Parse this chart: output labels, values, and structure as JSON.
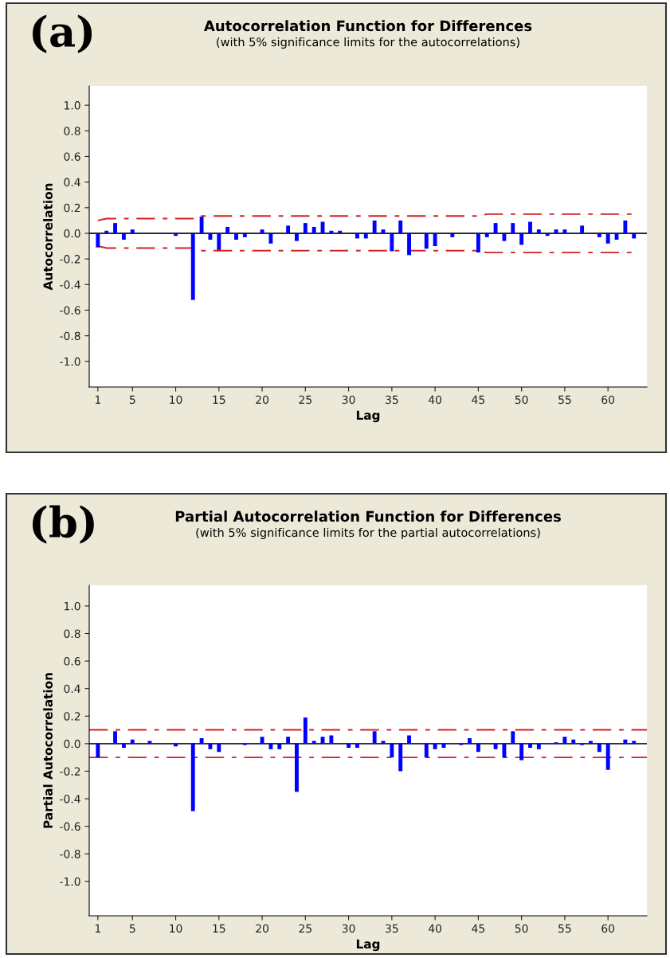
{
  "chart_data": [
    {
      "type": "bar",
      "title": "Autocorrelation Function for Differences",
      "subtitle": "(with 5% significance limits for the autocorrelations)",
      "xlabel": "Lag",
      "ylabel": "Autocorrelation",
      "annotations": [
        "(a)"
      ],
      "xlim": [
        0,
        64.5
      ],
      "xticks": [
        1,
        5,
        10,
        15,
        20,
        25,
        30,
        35,
        40,
        45,
        50,
        55,
        60
      ],
      "ylim": [
        -1.2,
        1.15
      ],
      "yticks": [
        {
          "value": 1,
          "label": "1.0"
        },
        {
          "value": 0.8,
          "label": "0.8"
        },
        {
          "value": 0.6,
          "label": "0.6"
        },
        {
          "value": 0.4,
          "label": "0.4"
        },
        {
          "value": 0.2,
          "label": "0.2"
        },
        {
          "value": 0,
          "label": "0.0"
        },
        {
          "value": -0.2,
          "label": "-0.2"
        },
        {
          "value": -0.4,
          "label": "-0.4"
        },
        {
          "value": -0.6,
          "label": "-0.6"
        },
        {
          "value": -0.8,
          "label": "-0.8"
        },
        {
          "value": -1,
          "label": "-1.0"
        }
      ],
      "grid": false,
      "legend": false,
      "ref_lines": [
        {
          "axis": "y",
          "value": 0,
          "color": "#2a2a3a",
          "line_style": "solid"
        }
      ],
      "series": [
        {
          "color": "#0000ff",
          "x": [
            1,
            2,
            3,
            4,
            5,
            6,
            7,
            8,
            9,
            10,
            11,
            12,
            13,
            14,
            15,
            16,
            17,
            18,
            19,
            20,
            21,
            22,
            23,
            24,
            25,
            26,
            27,
            28,
            29,
            30,
            31,
            32,
            33,
            34,
            35,
            36,
            37,
            38,
            39,
            40,
            41,
            42,
            43,
            44,
            45,
            46,
            47,
            48,
            49,
            50,
            51,
            52,
            53,
            54,
            55,
            56,
            57,
            58,
            59,
            60,
            61,
            62,
            63
          ],
          "values": [
            -0.11,
            0.02,
            0.08,
            -0.05,
            0.03,
            0,
            0,
            0,
            0,
            -0.02,
            0,
            -0.52,
            0.13,
            -0.05,
            -0.13,
            0.05,
            -0.05,
            -0.03,
            0,
            0.03,
            -0.08,
            0,
            0.06,
            -0.06,
            0.08,
            0.05,
            0.09,
            0.02,
            0.02,
            0,
            -0.04,
            -0.04,
            0.1,
            0.03,
            -0.14,
            0.1,
            -0.17,
            0,
            -0.12,
            -0.1,
            0,
            -0.03,
            0,
            0,
            -0.15,
            -0.03,
            0.08,
            -0.06,
            0.08,
            -0.09,
            0.09,
            0.03,
            -0.02,
            0.03,
            0.03,
            0,
            0.06,
            0,
            -0.03,
            -0.08,
            -0.05,
            0.1,
            -0.04
          ]
        },
        {
          "type": "line",
          "color": "#d42020",
          "line_style": "dashdot",
          "x": [
            1,
            2,
            12,
            13,
            45,
            46,
            63
          ],
          "values": [
            0.1,
            0.115,
            0.115,
            0.135,
            0.135,
            0.15,
            0.15
          ]
        },
        {
          "type": "line",
          "color": "#d42020",
          "line_style": "dashdot",
          "x": [
            1,
            2,
            12,
            13,
            45,
            46,
            63
          ],
          "values": [
            -0.1,
            -0.115,
            -0.115,
            -0.135,
            -0.135,
            -0.15,
            -0.15
          ]
        }
      ]
    },
    {
      "type": "bar",
      "title": "Partial Autocorrelation Function for Differences",
      "subtitle": "(with 5% significance limits for the partial autocorrelations)",
      "xlabel": "Lag",
      "ylabel": "Partial Autocorrelation",
      "annotations": [
        "(b)"
      ],
      "xlim": [
        0,
        64.5
      ],
      "xticks": [
        1,
        5,
        10,
        15,
        20,
        25,
        30,
        35,
        40,
        45,
        50,
        55,
        60
      ],
      "ylim": [
        -1.25,
        1.15
      ],
      "yticks": [
        {
          "value": 1,
          "label": "1.0"
        },
        {
          "value": 0.8,
          "label": "0.8"
        },
        {
          "value": 0.6,
          "label": "0.6"
        },
        {
          "value": 0.4,
          "label": "0.4"
        },
        {
          "value": 0.2,
          "label": "0.2"
        },
        {
          "value": 0,
          "label": "0.0"
        },
        {
          "value": -0.2,
          "label": "-0.2"
        },
        {
          "value": -0.4,
          "label": "-0.4"
        },
        {
          "value": -0.6,
          "label": "-0.6"
        },
        {
          "value": -0.8,
          "label": "-0.8"
        },
        {
          "value": -1,
          "label": "-1.0"
        }
      ],
      "grid": false,
      "legend": false,
      "ref_lines": [
        {
          "axis": "y",
          "value": 0,
          "color": "#2a2a3a",
          "line_style": "solid"
        },
        {
          "axis": "y",
          "value": 0.1,
          "color": "#d42020",
          "line_style": "dashdot"
        },
        {
          "axis": "y",
          "value": -0.1,
          "color": "#d42020",
          "line_style": "dashdot"
        }
      ],
      "series": [
        {
          "color": "#0000ff",
          "x": [
            1,
            2,
            3,
            4,
            5,
            6,
            7,
            8,
            9,
            10,
            11,
            12,
            13,
            14,
            15,
            16,
            17,
            18,
            19,
            20,
            21,
            22,
            23,
            24,
            25,
            26,
            27,
            28,
            29,
            30,
            31,
            32,
            33,
            34,
            35,
            36,
            37,
            38,
            39,
            40,
            41,
            42,
            43,
            44,
            45,
            46,
            47,
            48,
            49,
            50,
            51,
            52,
            53,
            54,
            55,
            56,
            57,
            58,
            59,
            60,
            61,
            62,
            63
          ],
          "values": [
            -0.1,
            0,
            0.09,
            -0.03,
            0.03,
            0,
            0.02,
            0,
            0,
            -0.02,
            0,
            -0.49,
            0.04,
            -0.04,
            -0.06,
            0,
            0,
            -0.01,
            0,
            0.05,
            -0.04,
            -0.04,
            0.05,
            -0.35,
            0.19,
            0.02,
            0.05,
            0.06,
            0,
            -0.03,
            -0.03,
            0,
            0.09,
            0.02,
            -0.1,
            -0.2,
            0.06,
            0,
            -0.1,
            -0.04,
            -0.03,
            0,
            -0.01,
            0.04,
            -0.06,
            0,
            -0.04,
            -0.1,
            0.09,
            -0.12,
            -0.03,
            -0.04,
            0,
            0.01,
            0.05,
            0.03,
            -0.01,
            0.02,
            -0.06,
            -0.19,
            0,
            0.03,
            0.02
          ]
        }
      ]
    }
  ]
}
